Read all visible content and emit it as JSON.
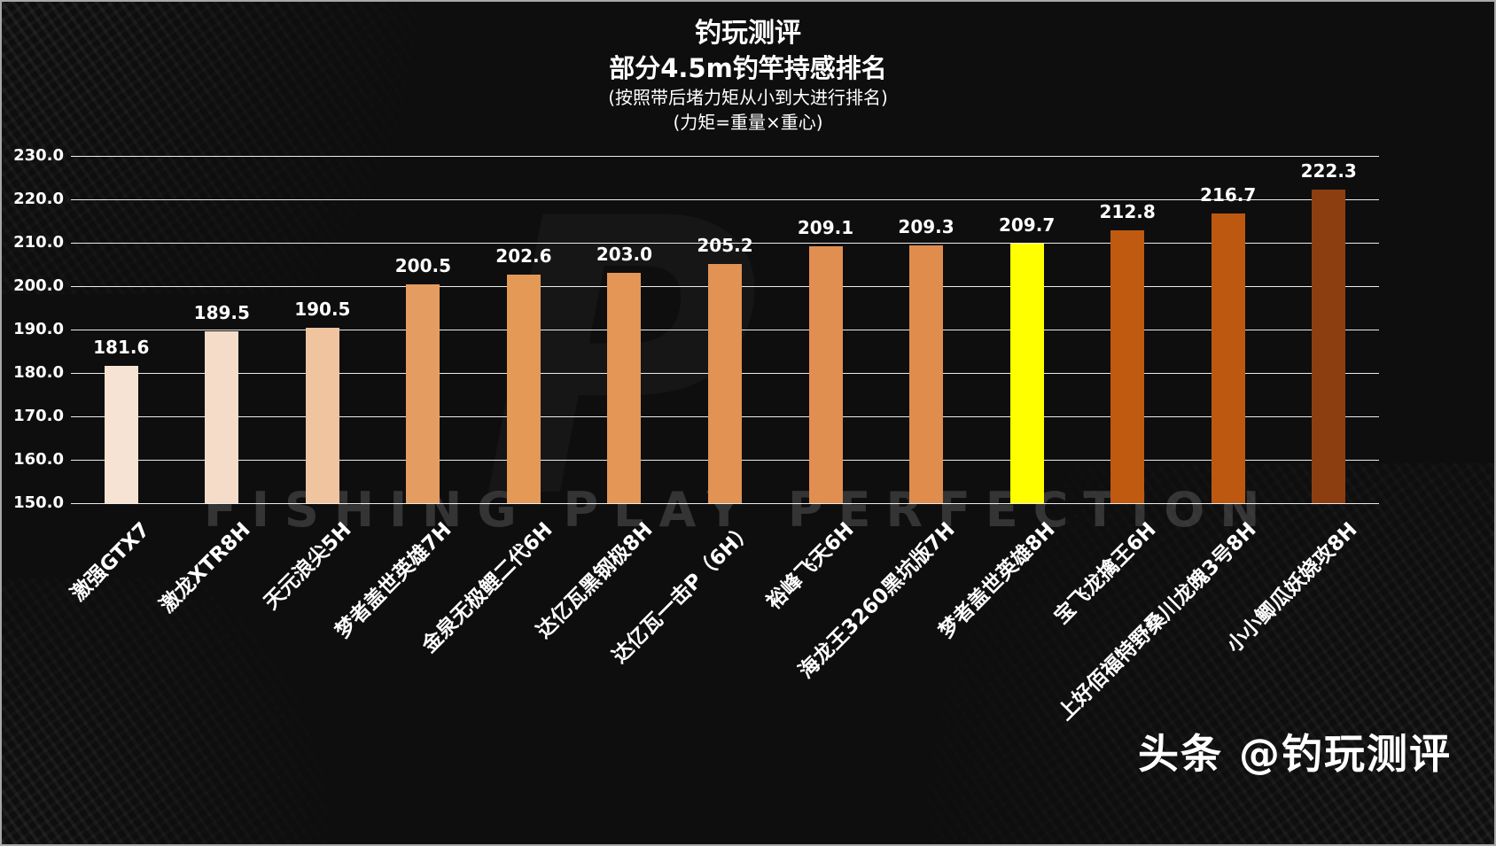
{
  "header": {
    "title": "钓玩测评",
    "subtitle": "部分4.5m钓竿持感排名",
    "note1": "(按照带后堵力矩从小到大进行排名)",
    "note2": "(力矩=重量×重心)"
  },
  "watermark": "FISHING PLAY PERFECTION",
  "background_logo": "P",
  "footer": "头条 @钓玩测评",
  "chart_data": {
    "type": "bar",
    "title": "部分4.5m钓竿持感排名",
    "xlabel": "",
    "ylabel": "",
    "categories": [
      "激强GTX7",
      "激龙XTR8H",
      "天元浪尖5H",
      "梦者盖世英雄7H",
      "金泉无极鲤二代6H",
      "达亿瓦黑钢极8H",
      "达亿瓦一击P（6H）",
      "裕峰飞天6H",
      "海龙王3260黑坑版7H",
      "梦者盖世英雄8H",
      "宝飞龙擒王6H",
      "上好佰福特野桑川龙魄3号8H",
      "小小鲫瓜妖娆攻8H"
    ],
    "values": [
      181.6,
      189.5,
      190.5,
      200.5,
      202.6,
      203.0,
      205.2,
      209.1,
      209.3,
      209.7,
      212.8,
      216.7,
      222.3
    ],
    "value_labels": [
      "181.6",
      "189.5",
      "190.5",
      "200.5",
      "202.6",
      "203.0",
      "205.2",
      "209.1",
      "209.3",
      "209.7",
      "212.8",
      "216.7",
      "222.3"
    ],
    "bar_colors": [
      "#f7e3d3",
      "#f5dcc8",
      "#efc49f",
      "#e59c60",
      "#e49957",
      "#e39655",
      "#e29252",
      "#e18f50",
      "#e08c4d",
      "#ffff00",
      "#c05a10",
      "#bd5810",
      "#8d3e10"
    ],
    "ylim": [
      150,
      230
    ],
    "yticks": [
      "230.0",
      "220.0",
      "210.0",
      "200.0",
      "190.0",
      "180.0",
      "170.0",
      "160.0",
      "150.0"
    ],
    "ytick_values": [
      230,
      220,
      210,
      200,
      190,
      180,
      170,
      160,
      150
    ],
    "grid": true,
    "legend_position": "none",
    "highlight_index": 9,
    "highlight_color": "#ffff00"
  }
}
